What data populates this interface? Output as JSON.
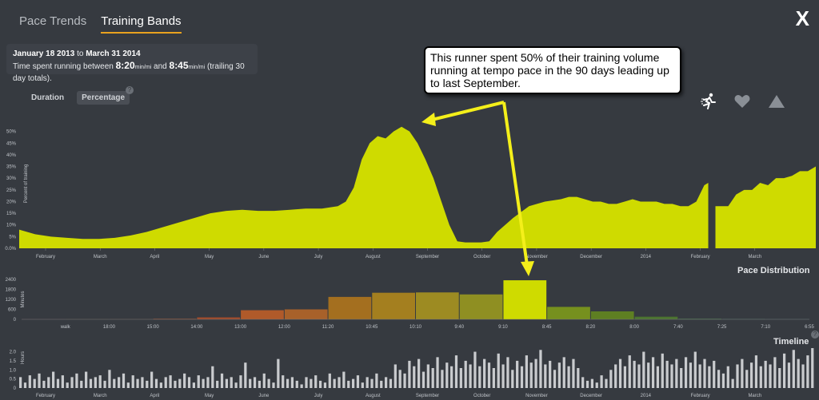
{
  "tabs": [
    {
      "label": "Pace Trends",
      "active": false
    },
    {
      "label": "Training Bands",
      "active": true
    }
  ],
  "close_label": "X",
  "info": {
    "date_from": "January 18 2013",
    "date_to_word": "to",
    "date_to": "March 31 2014",
    "line_prefix": "Time spent running between",
    "pace_low": "8:20",
    "pace_high": "8:45",
    "unit": "min/mi",
    "and_word": "and",
    "suffix": "(trailing 30 day totals)."
  },
  "mode": {
    "duration": "Duration",
    "percentage": "Percentage",
    "help": "?"
  },
  "callout_text": "This runner spent 50% of their training volume running at tempo pace in the 90 days leading up to last September.",
  "icons": [
    "runner-icon",
    "heart-icon",
    "mountain-icon"
  ],
  "accent_color": "#cfdb00",
  "chart_data": [
    {
      "type": "area",
      "ylabel": "Percent of training",
      "yticks": [
        "0.0%",
        "5%",
        "10%",
        "15%",
        "20%",
        "25%",
        "30%",
        "35%",
        "40%",
        "45%",
        "50%"
      ],
      "ylim": [
        0,
        0.55
      ],
      "xticks": [
        "February",
        "March",
        "April",
        "May",
        "June",
        "July",
        "August",
        "September",
        "October",
        "November",
        "December",
        "2014",
        "February",
        "March"
      ],
      "segments": [
        {
          "x": [
            0,
            2,
            4,
            6,
            8,
            10,
            12,
            14,
            16,
            18,
            20,
            22,
            24,
            26,
            28,
            30,
            32,
            34,
            36,
            38,
            40,
            41,
            42,
            43,
            44,
            45,
            46,
            47,
            48,
            49,
            50,
            51,
            52,
            53,
            54,
            55,
            56,
            57,
            58,
            59,
            60,
            62,
            64,
            66,
            68,
            69,
            70,
            71,
            72,
            73,
            74,
            75,
            76,
            77,
            78,
            79,
            80,
            81,
            82,
            83,
            84,
            85,
            86,
            86.5
          ],
          "y": [
            0.08,
            0.06,
            0.05,
            0.045,
            0.04,
            0.04,
            0.045,
            0.055,
            0.07,
            0.09,
            0.11,
            0.13,
            0.15,
            0.16,
            0.165,
            0.16,
            0.16,
            0.165,
            0.17,
            0.17,
            0.18,
            0.2,
            0.26,
            0.38,
            0.45,
            0.48,
            0.47,
            0.5,
            0.52,
            0.5,
            0.45,
            0.38,
            0.3,
            0.2,
            0.1,
            0.03,
            0.025,
            0.025,
            0.025,
            0.03,
            0.07,
            0.13,
            0.18,
            0.2,
            0.21,
            0.22,
            0.22,
            0.21,
            0.2,
            0.2,
            0.19,
            0.19,
            0.2,
            0.21,
            0.2,
            0.2,
            0.2,
            0.19,
            0.19,
            0.18,
            0.18,
            0.2,
            0.27,
            0.28
          ]
        },
        {
          "x": [
            87.4,
            88,
            89,
            90,
            91,
            92,
            93,
            94,
            95,
            96,
            97,
            98,
            99,
            100
          ],
          "y": [
            0.18,
            0.18,
            0.18,
            0.23,
            0.25,
            0.25,
            0.28,
            0.27,
            0.3,
            0.3,
            0.31,
            0.33,
            0.33,
            0.35
          ]
        }
      ]
    },
    {
      "type": "bar",
      "title": "Pace Distribution",
      "ylabel": "Minutes",
      "yticks": [
        "0",
        "600",
        "1200",
        "1800",
        "2400"
      ],
      "ylim": [
        0,
        2400
      ],
      "categories": [
        "walk",
        "18:00",
        "15:00",
        "14:00",
        "13:00",
        "12:00",
        "11:20",
        "10:45",
        "10:10",
        "9:40",
        "9:10",
        "8:45",
        "8:20",
        "8:00",
        "7:40",
        "7:25",
        "7:10",
        "6:55"
      ],
      "values": [
        10,
        10,
        10,
        40,
        120,
        550,
        600,
        1350,
        1600,
        1620,
        1500,
        2350,
        750,
        480,
        160,
        40,
        20,
        10
      ],
      "colors": [
        "#604040",
        "#6a4a3a",
        "#7a4a35",
        "#8a4a30",
        "#a04a2a",
        "#b05a2a",
        "#a8612a",
        "#a46f1f",
        "#a47f1f",
        "#9d8b22",
        "#8f8f22",
        "#cfdb00",
        "#76901e",
        "#5e7f22",
        "#4c7330",
        "#46704a",
        "#3e6e60",
        "#3a6a70"
      ]
    },
    {
      "type": "bar",
      "title": "Timeline",
      "ylabel": "Hours",
      "yticks": [
        "0",
        "0.5",
        "1.0",
        "1.5",
        "2.0"
      ],
      "ylim": [
        0,
        2.2
      ],
      "xticks": [
        "February",
        "March",
        "April",
        "May",
        "June",
        "July",
        "August",
        "September",
        "October",
        "November",
        "December",
        "2014",
        "February",
        "March"
      ],
      "values": [
        0.6,
        0.3,
        0.7,
        0.5,
        0.8,
        0.4,
        0.6,
        0.9,
        0.5,
        0.7,
        0.3,
        0.6,
        0.8,
        0.4,
        0.9,
        0.5,
        0.6,
        0.7,
        0.4,
        1.0,
        0.5,
        0.6,
        0.8,
        0.3,
        0.7,
        0.5,
        0.6,
        0.4,
        0.9,
        0.5,
        0.3,
        0.6,
        0.7,
        0.4,
        0.5,
        0.8,
        0.6,
        0.3,
        0.7,
        0.5,
        0.6,
        1.2,
        0.4,
        0.8,
        0.5,
        0.6,
        0.3,
        0.7,
        1.4,
        0.5,
        0.6,
        0.4,
        0.8,
        0.5,
        0.3,
        1.6,
        0.7,
        0.5,
        0.6,
        0.4,
        0.2,
        0.6,
        0.5,
        0.7,
        0.4,
        0.3,
        0.8,
        0.5,
        0.6,
        0.9,
        0.4,
        0.5,
        0.7,
        0.3,
        0.6,
        0.5,
        0.8,
        0.4,
        0.6,
        0.5,
        1.3,
        1.0,
        0.8,
        1.5,
        1.2,
        1.6,
        0.9,
        1.3,
        1.1,
        1.7,
        1.0,
        1.4,
        1.2,
        1.8,
        1.1,
        1.5,
        1.3,
        2.0,
        1.2,
        1.6,
        1.4,
        1.1,
        1.9,
        1.3,
        1.7,
        1.0,
        1.5,
        1.2,
        1.8,
        1.4,
        1.6,
        2.1,
        1.3,
        1.5,
        1.0,
        1.4,
        1.7,
        1.2,
        1.6,
        1.1,
        0.6,
        0.4,
        0.5,
        0.3,
        0.7,
        0.5,
        1.0,
        1.3,
        1.6,
        1.2,
        1.8,
        1.5,
        1.3,
        2.0,
        1.4,
        1.7,
        1.2,
        1.9,
        1.5,
        1.3,
        1.6,
        1.1,
        1.7,
        1.4,
        2.0,
        1.3,
        1.6,
        1.2,
        1.5,
        1.0,
        0.8,
        1.2,
        0.5,
        1.3,
        1.6,
        1.0,
        1.4,
        1.8,
        1.2,
        1.5,
        1.3,
        1.7,
        1.1,
        1.9,
        1.4,
        2.1,
        1.6,
        1.3,
        1.8,
        2.2
      ]
    }
  ]
}
